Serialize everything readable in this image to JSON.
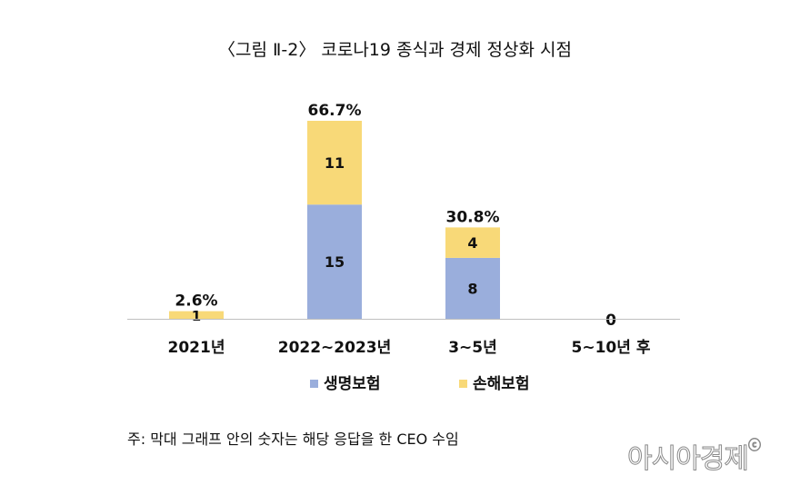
{
  "chart_data": {
    "type": "bar",
    "title": "〈그림 Ⅱ-2〉 코로나19 종식과 경제 정상화 시점",
    "categories": [
      "2021년",
      "2022~2023년",
      "3~5년",
      "5~10년 후"
    ],
    "series": [
      {
        "name": "생명보험",
        "values": [
          0,
          15,
          8,
          0
        ],
        "color": "#9aaedc"
      },
      {
        "name": "손해보험",
        "values": [
          1,
          11,
          4,
          0
        ],
        "color": "#f8d978"
      }
    ],
    "segment_labels": [
      [
        "",
        "15",
        "8",
        ""
      ],
      [
        "1",
        "11",
        "4",
        ""
      ]
    ],
    "totals_pct": [
      "2.6%",
      "66.7%",
      "30.8%",
      "0"
    ],
    "ylim": [
      0,
      26
    ],
    "legend_position": "bottom",
    "note": "주: 막대 그래프 안의 숫자는 해당 응답을 한 CEO 수임"
  },
  "watermark": "아시아경제",
  "watermark_mark": "ⓒ"
}
